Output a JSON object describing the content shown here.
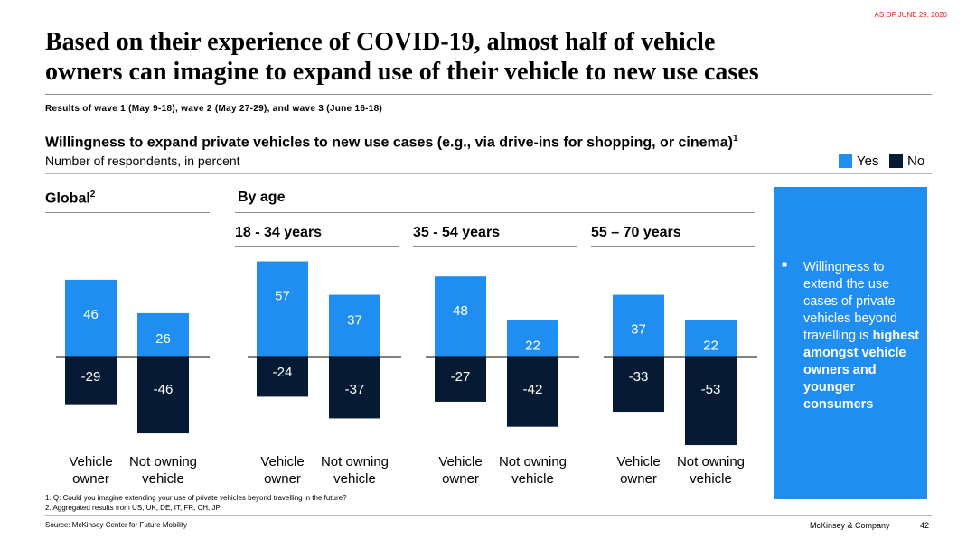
{
  "as_of": "AS OF JUNE 29, 2020",
  "title_line1": "Based on their experience of COVID-19, almost half of vehicle",
  "title_line2": "owners can imagine to expand use of their vehicle to new use cases",
  "subtitle": "Results of wave 1 (May 9-18), wave 2 (May 27-29), and wave 3 (June 16-18)",
  "colors": {
    "yes": "#1f8ef0",
    "no": "#071a33",
    "accent": "#e8221b"
  },
  "chart_data": {
    "type": "bar",
    "title": "Willingness to expand private vehicles to new use cases (e.g., via drive-ins for shopping, or cinema)",
    "title_footnote": "1",
    "ylabel": "Number of respondents, in percent",
    "legend": [
      {
        "name": "Yes"
      },
      {
        "name": "No"
      }
    ],
    "section_titles": {
      "global": "Global",
      "global_footnote": "2",
      "by_age": "By age"
    },
    "categories": [
      "Vehicle owner",
      "Not owning vehicle"
    ],
    "groups": [
      {
        "name": "Global",
        "yes": [
          46,
          26
        ],
        "no": [
          -29,
          -46
        ]
      },
      {
        "name": "18 - 34 years",
        "yes": [
          57,
          37
        ],
        "no": [
          -24,
          -37
        ]
      },
      {
        "name": "35 - 54 years",
        "yes": [
          48,
          22
        ],
        "no": [
          -27,
          -42
        ]
      },
      {
        "name": "55 – 70 years",
        "yes": [
          37,
          22
        ],
        "no": [
          -33,
          -53
        ]
      }
    ]
  },
  "category_lines": [
    [
      "Vehicle",
      "owner"
    ],
    [
      "Not owning",
      "vehicle"
    ]
  ],
  "insight": {
    "text": "Willingness to extend the use cases of private vehicles beyond travelling is ",
    "bold": "highest amongst vehicle owners and younger consumers"
  },
  "footnotes": [
    "1.   Q: Could you imagine extending your use of private vehicles beyond travelling in the future?",
    "2.   Aggregated results from US, UK, DE, IT, FR, CH, JP"
  ],
  "source": "Source: McKinsey Center for Future Mobility",
  "company": "McKinsey & Company",
  "page_number": "42"
}
